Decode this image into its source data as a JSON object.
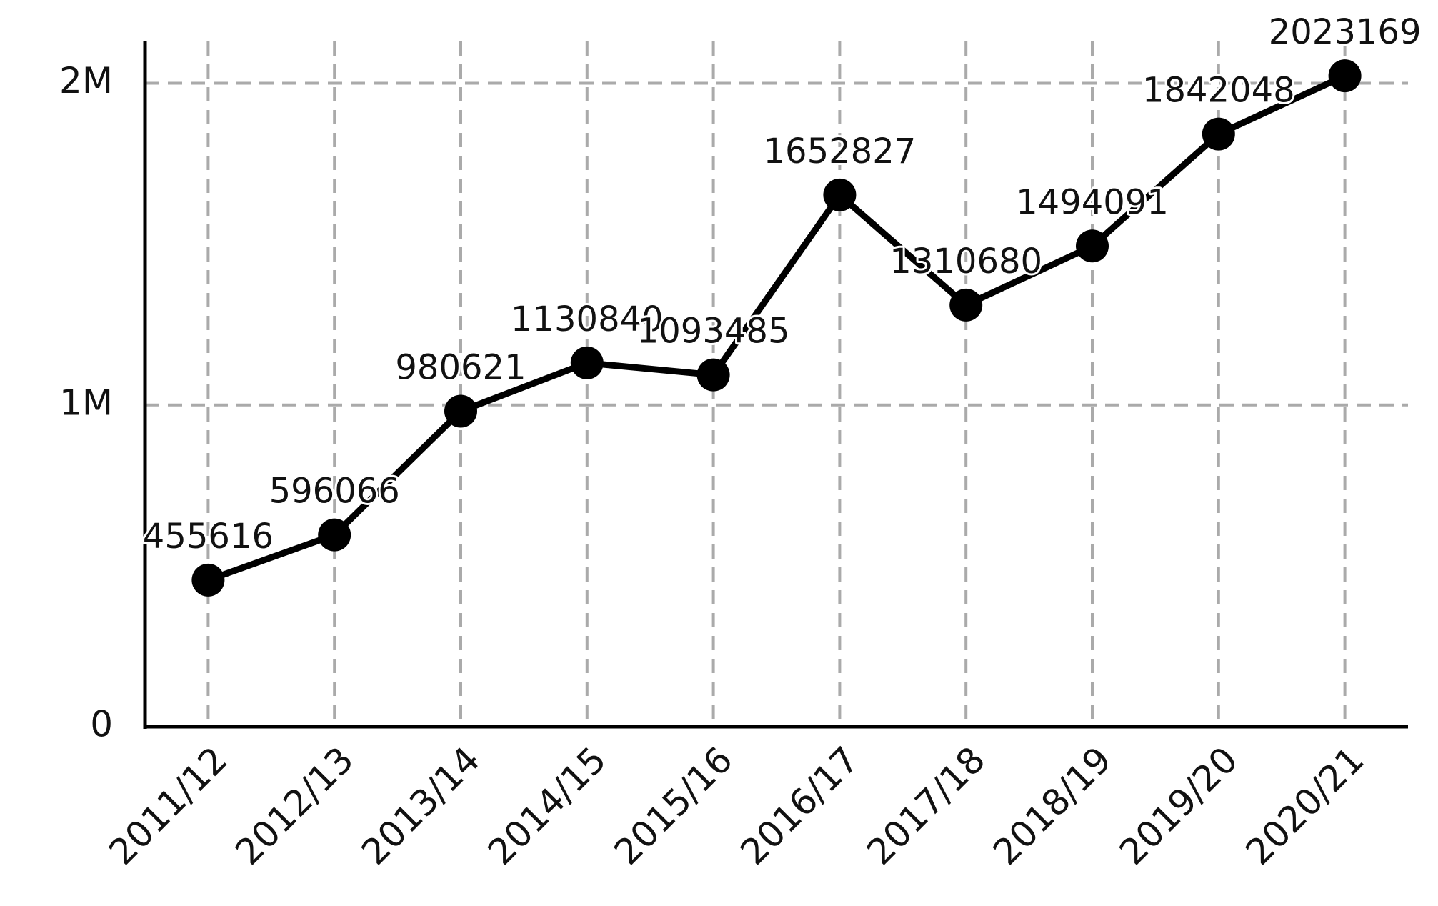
{
  "chart_data": {
    "type": "line",
    "categories": [
      "2011/12",
      "2012/13",
      "2013/14",
      "2014/15",
      "2015/16",
      "2016/17",
      "2017/18",
      "2018/19",
      "2019/20",
      "2020/21"
    ],
    "values": [
      455616,
      596066,
      980621,
      1130840,
      1093485,
      1652827,
      1310680,
      1494091,
      1842048,
      2023169
    ],
    "color": "#000000",
    "ylim": [
      0,
      2130000
    ],
    "yticks": [
      0,
      {
        "value": 1000000,
        "label": "1M"
      },
      {
        "value": 2000000,
        "label": "2M"
      }
    ],
    "grid": true
  }
}
